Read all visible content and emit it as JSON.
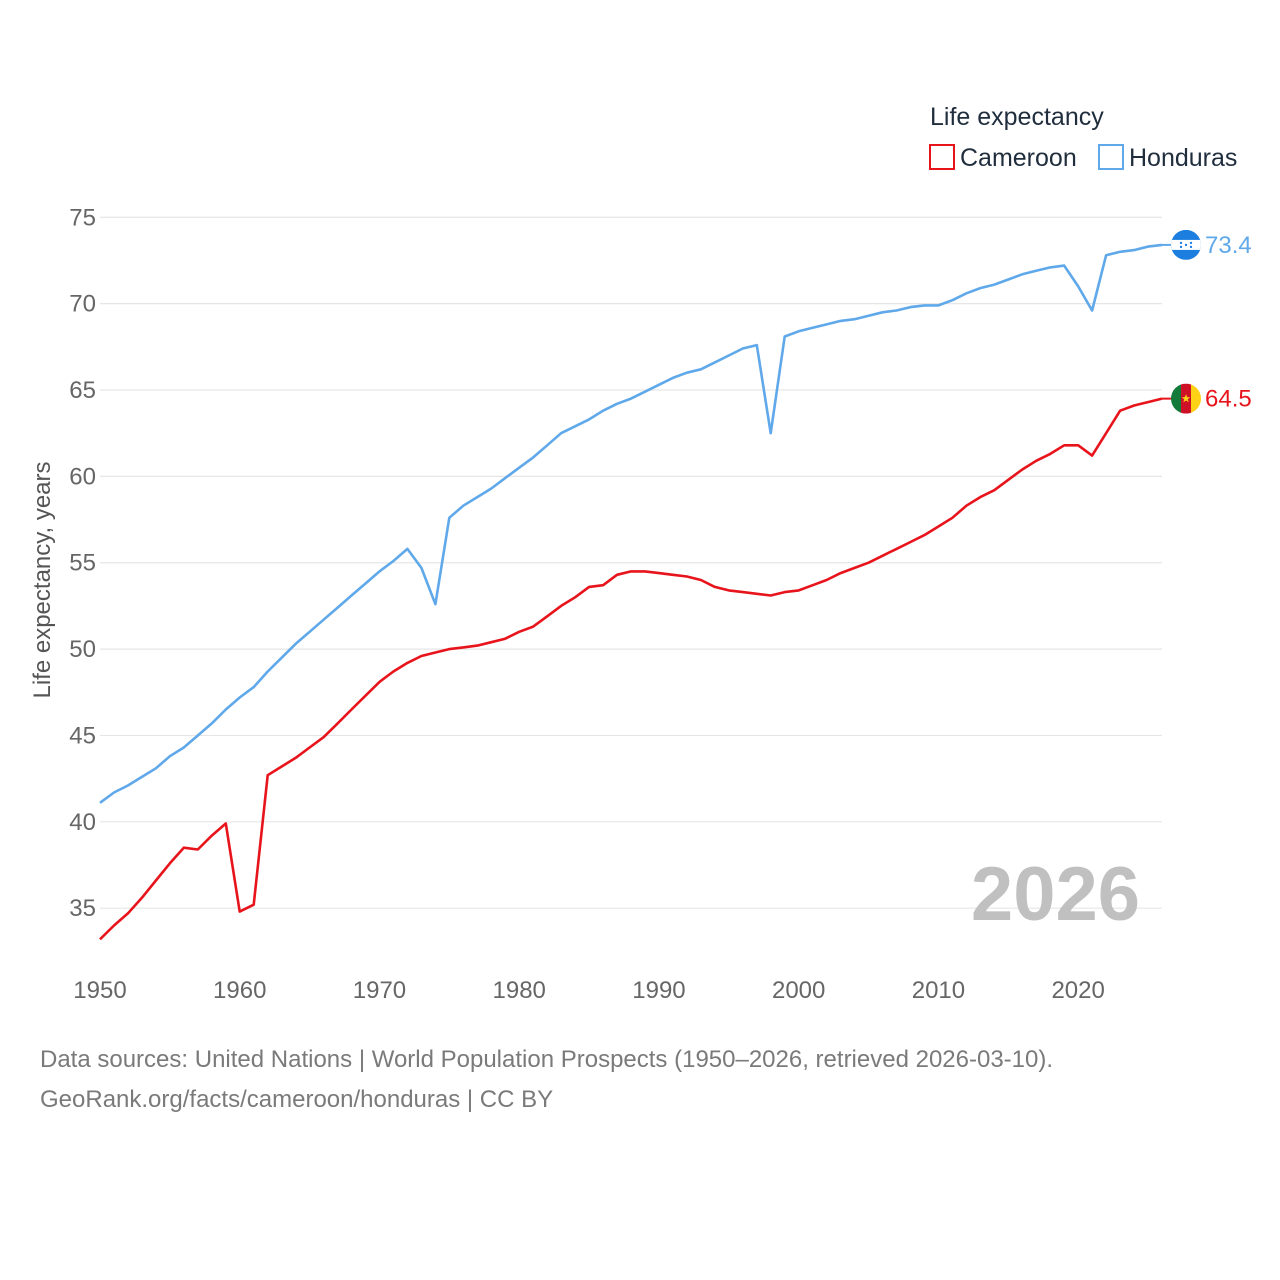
{
  "chart_data": {
    "type": "line",
    "legend_title": "Life expectancy",
    "ylabel": "Life expectancy, years",
    "xlabel": "",
    "xlim": [
      1950,
      2026
    ],
    "ylim": [
      32,
      76
    ],
    "x_ticks": [
      1950,
      1960,
      1970,
      1980,
      1990,
      2000,
      2010,
      2020
    ],
    "y_ticks": [
      35,
      40,
      45,
      50,
      55,
      60,
      65,
      70,
      75
    ],
    "current_year": "2026",
    "x": [
      1950,
      1951,
      1952,
      1953,
      1954,
      1955,
      1956,
      1957,
      1958,
      1959,
      1960,
      1961,
      1962,
      1963,
      1964,
      1965,
      1966,
      1967,
      1968,
      1969,
      1970,
      1971,
      1972,
      1973,
      1974,
      1975,
      1976,
      1977,
      1978,
      1979,
      1980,
      1981,
      1982,
      1983,
      1984,
      1985,
      1986,
      1987,
      1988,
      1989,
      1990,
      1991,
      1992,
      1993,
      1994,
      1995,
      1996,
      1997,
      1998,
      1999,
      2000,
      2001,
      2002,
      2003,
      2004,
      2005,
      2006,
      2007,
      2008,
      2009,
      2010,
      2011,
      2012,
      2013,
      2014,
      2015,
      2016,
      2017,
      2018,
      2019,
      2020,
      2021,
      2022,
      2023,
      2024,
      2025,
      2026
    ],
    "series": [
      {
        "name": "Cameroon",
        "color": "#e8141c",
        "end_label": "64.5",
        "flag": "cameroon-flag",
        "values": [
          33.2,
          34.0,
          34.7,
          35.6,
          36.6,
          37.6,
          38.5,
          38.4,
          39.2,
          39.9,
          34.8,
          35.2,
          42.7,
          43.2,
          43.7,
          44.3,
          44.9,
          45.7,
          46.5,
          47.3,
          48.1,
          48.7,
          49.2,
          49.6,
          49.8,
          50.0,
          50.1,
          50.2,
          50.4,
          50.6,
          51.0,
          51.3,
          51.9,
          52.5,
          53.0,
          53.6,
          53.7,
          54.3,
          54.5,
          54.5,
          54.4,
          54.3,
          54.2,
          54.0,
          53.6,
          53.4,
          53.3,
          53.2,
          53.1,
          53.3,
          53.4,
          53.7,
          54.0,
          54.4,
          54.7,
          55.0,
          55.4,
          55.8,
          56.2,
          56.6,
          57.1,
          57.6,
          58.3,
          58.8,
          59.2,
          59.8,
          60.4,
          60.9,
          61.3,
          61.8,
          61.8,
          61.2,
          62.5,
          63.8,
          64.1,
          64.3,
          64.5
        ]
      },
      {
        "name": "Honduras",
        "color": "#5fa8ea",
        "end_label": "73.4",
        "flag": "honduras-flag",
        "values": [
          41.1,
          41.7,
          42.1,
          42.6,
          43.1,
          43.8,
          44.3,
          45.0,
          45.7,
          46.5,
          47.2,
          47.8,
          48.7,
          49.5,
          50.3,
          51.0,
          51.7,
          52.4,
          53.1,
          53.8,
          54.5,
          55.1,
          55.8,
          54.7,
          52.6,
          57.6,
          58.3,
          58.8,
          59.3,
          59.9,
          60.5,
          61.1,
          61.8,
          62.5,
          62.9,
          63.3,
          63.8,
          64.2,
          64.5,
          64.9,
          65.3,
          65.7,
          66.0,
          66.2,
          66.6,
          67.0,
          67.4,
          67.6,
          62.5,
          68.1,
          68.4,
          68.6,
          68.8,
          69.0,
          69.1,
          69.3,
          69.5,
          69.6,
          69.8,
          69.9,
          69.9,
          70.2,
          70.6,
          70.9,
          71.1,
          71.4,
          71.7,
          71.9,
          72.1,
          72.2,
          71.0,
          69.6,
          72.8,
          73.0,
          73.1,
          73.3,
          73.4
        ]
      }
    ]
  },
  "source": {
    "line1": "Data sources: United Nations | World Population Prospects (1950–2026, retrieved 2026-03-10).",
    "line2": "GeoRank.org/facts/cameroon/honduras | CC BY"
  }
}
